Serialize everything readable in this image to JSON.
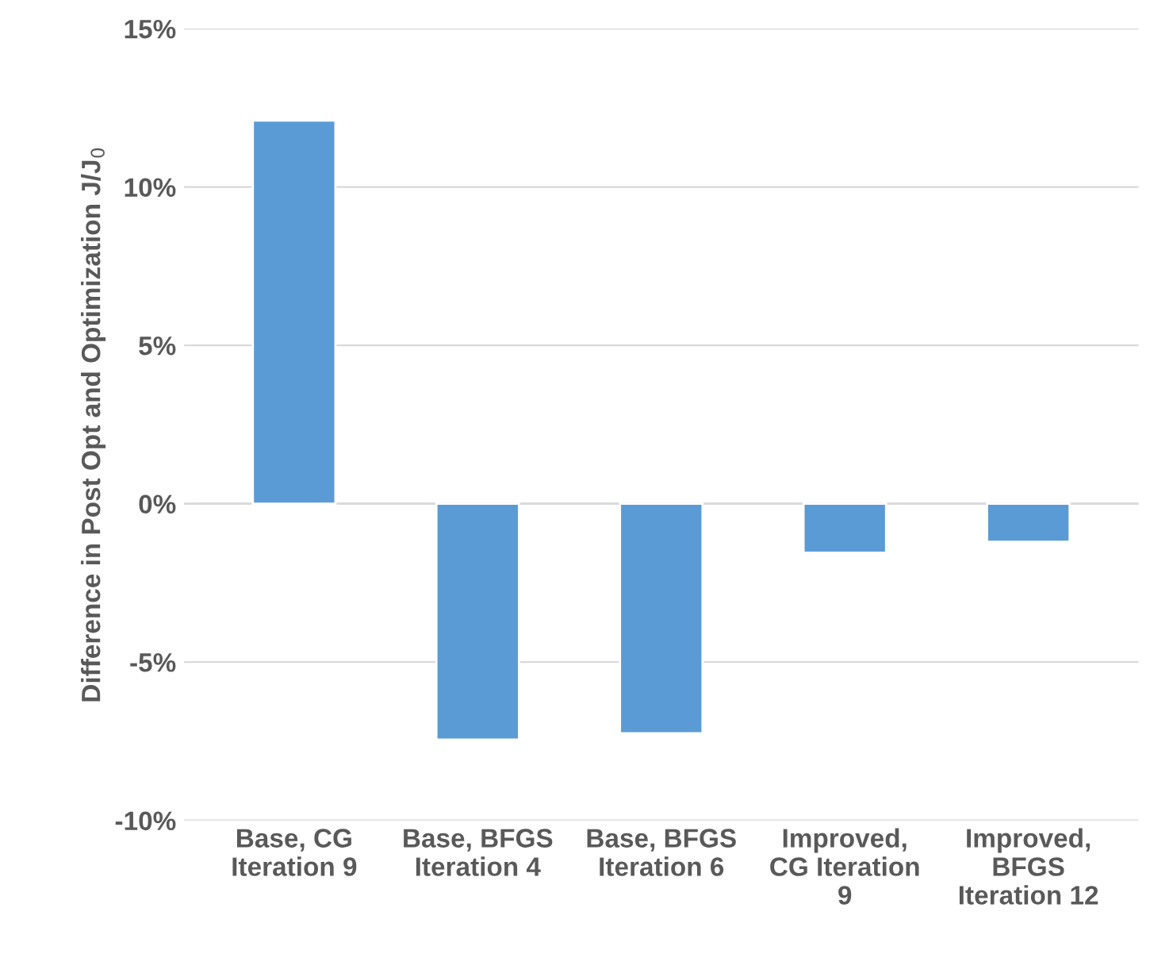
{
  "chart_data": {
    "type": "bar",
    "ylabel": "Difference in Post Opt and Optimization J/J$_{0}$",
    "categories": [
      "Base, CG\nIteration 9",
      "Base, BFGS\nIteration 4",
      "Base, BFGS\nIteration 6",
      "Improved,\nCG Iteration\n9",
      "Improved,\nBFGS\nIteration 12"
    ],
    "values": [
      12.1,
      -7.45,
      -7.25,
      -1.55,
      -1.2
    ],
    "color": "#5b9bd5",
    "ylim": [
      -10,
      15
    ],
    "yticks": [
      {
        "value": -10,
        "label": "-10%"
      },
      {
        "value": -5,
        "label": "-5%"
      },
      {
        "value": 0,
        "label": "0%"
      },
      {
        "value": 5,
        "label": "5%"
      },
      {
        "value": 10,
        "label": "10%"
      },
      {
        "value": 15,
        "label": "15%"
      }
    ],
    "grid": "y"
  }
}
